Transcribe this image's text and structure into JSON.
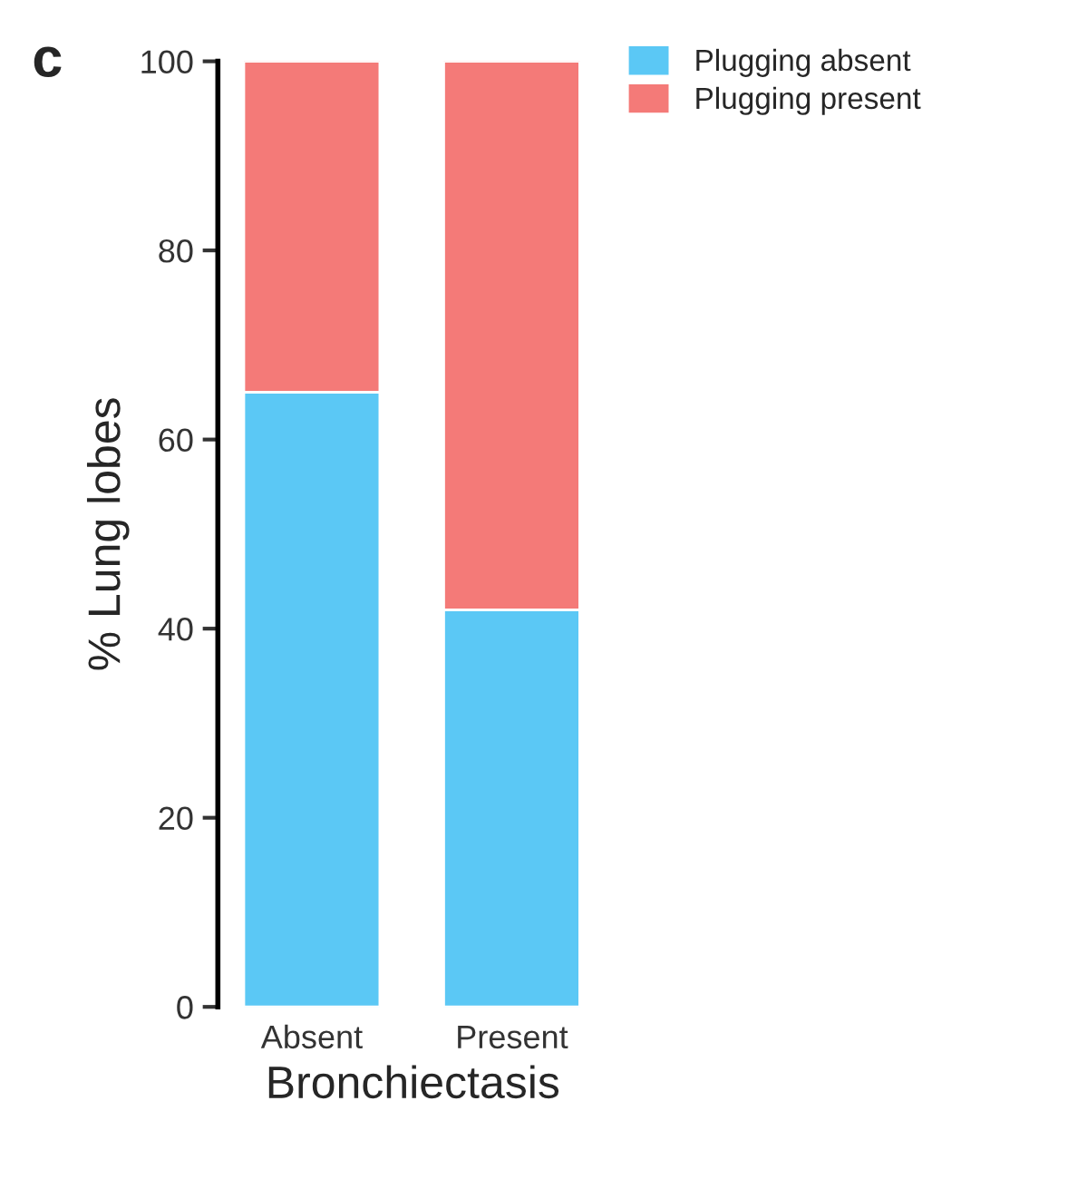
{
  "chart_data": {
    "type": "bar",
    "stacked": true,
    "xlabel": "Bronchiectasis",
    "ylabel": "% Lung lobes",
    "categories": [
      "Absent",
      "Present"
    ],
    "series": [
      {
        "name": "Plugging absent",
        "color": "#5bc8f5",
        "values": [
          65,
          42
        ]
      },
      {
        "name": "Plugging present",
        "color": "#f47a78",
        "values": [
          35,
          58
        ]
      }
    ],
    "ylim": [
      0,
      100
    ],
    "yticks": [
      0,
      20,
      40,
      60,
      80,
      100
    ],
    "grid": false,
    "legend": "top right",
    "annotations": [
      "c"
    ]
  }
}
